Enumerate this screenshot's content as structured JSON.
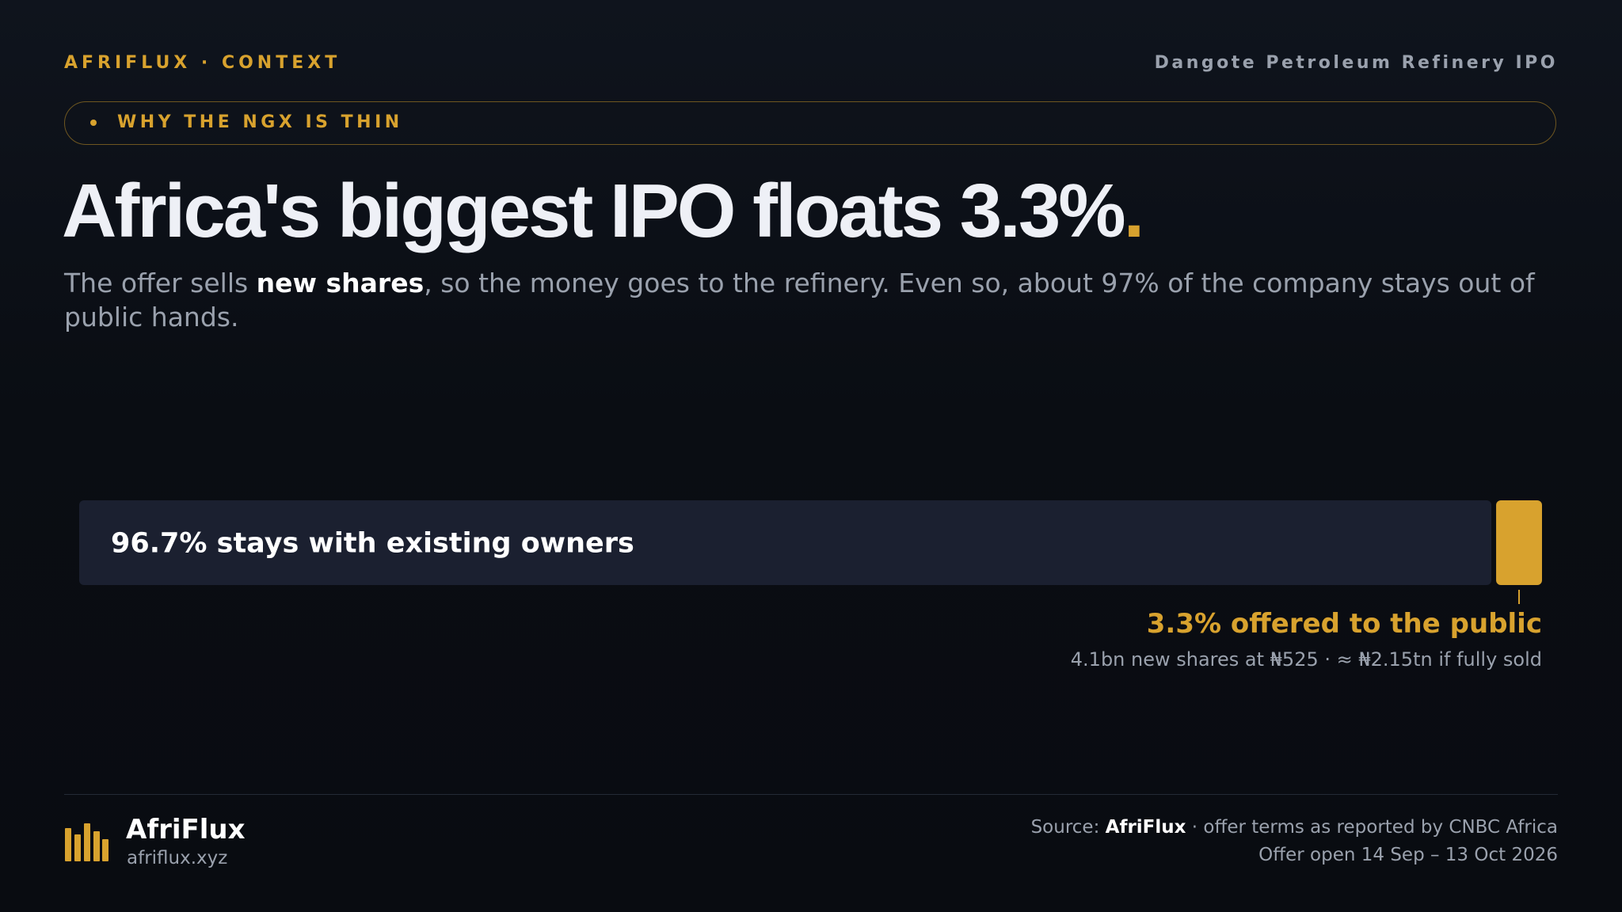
{
  "header": {
    "kicker": "AFRIFLUX · CONTEXT",
    "topic": "Dangote Petroleum Refinery IPO",
    "tag": "WHY THE NGX IS THIN"
  },
  "headline": {
    "text": "Africa's biggest IPO floats 3.3%",
    "accent": "."
  },
  "subtitle": [
    "The offer sells ",
    "new shares",
    ", so the money goes to the refinery. Even so, about 97% of the company stays out of public hands."
  ],
  "chart_data": {
    "type": "bar",
    "stacked": true,
    "values": [
      96.7,
      3.3
    ],
    "value_labels": [
      "96.7% stays with existing owners",
      "3.3% offered to the public"
    ],
    "colors": [
      "#1b2030",
      "#d8a22e"
    ],
    "xlim": [
      0,
      100
    ],
    "note": "4.1bn new shares at ₦525 · ≈ ₦2.15tn if fully sold"
  },
  "footer": {
    "brand": "AfriFlux",
    "url": "afriflux.xyz",
    "source": [
      "Source: ",
      "AfriFlux",
      " · offer terms as reported by CNBC Africa"
    ],
    "dates": "Offer open 14 Sep – 13 Oct 2026"
  }
}
